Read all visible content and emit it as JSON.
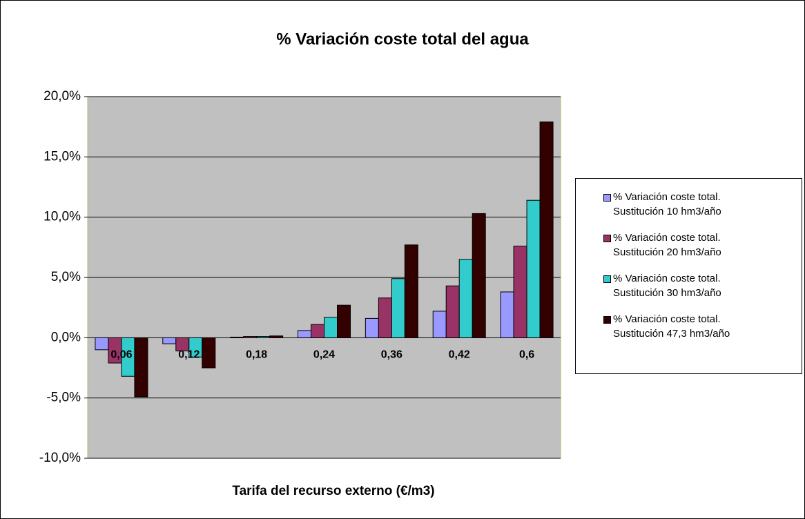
{
  "chart_data": {
    "type": "bar",
    "title": "%  Variación coste total del agua",
    "x_label": "Tarifa del recurso externo (€/m3)",
    "categories": [
      "0,06",
      "0,12",
      "0,18",
      "0,24",
      "0,36",
      "0,42",
      "0,6"
    ],
    "series": [
      {
        "name": "% Variación coste total. Sustitución 10 hm3/año",
        "color": "#9999ff",
        "values": [
          -1.0,
          -0.5,
          0.05,
          0.6,
          1.6,
          2.2,
          3.8
        ]
      },
      {
        "name": "% Variación coste total. Sustitución 20 hm3/año",
        "color": "#993366",
        "values": [
          -2.1,
          -1.1,
          0.1,
          1.1,
          3.3,
          4.3,
          7.6
        ]
      },
      {
        "name": "% Variación coste total. Sustitución 30 hm3/año",
        "color": "#33cccc",
        "values": [
          -3.2,
          -1.6,
          0.1,
          1.7,
          4.9,
          6.5,
          11.4
        ]
      },
      {
        "name": "% Variación coste total. Sustitución 47,3 hm3/año",
        "color": "#330000",
        "values": [
          -4.9,
          -2.5,
          0.15,
          2.7,
          7.7,
          10.3,
          17.9
        ]
      }
    ],
    "ylim": [
      -10,
      20
    ],
    "yticks": [
      {
        "value": -10,
        "label": "-10,0%"
      },
      {
        "value": -5,
        "label": "-5,0%"
      },
      {
        "value": 0,
        "label": "0,0%"
      },
      {
        "value": 5,
        "label": "5,0%"
      },
      {
        "value": 10,
        "label": "10,0%"
      },
      {
        "value": 15,
        "label": "15,0%"
      },
      {
        "value": 20,
        "label": "20,0%"
      }
    ],
    "grid": true,
    "legend": "right"
  }
}
